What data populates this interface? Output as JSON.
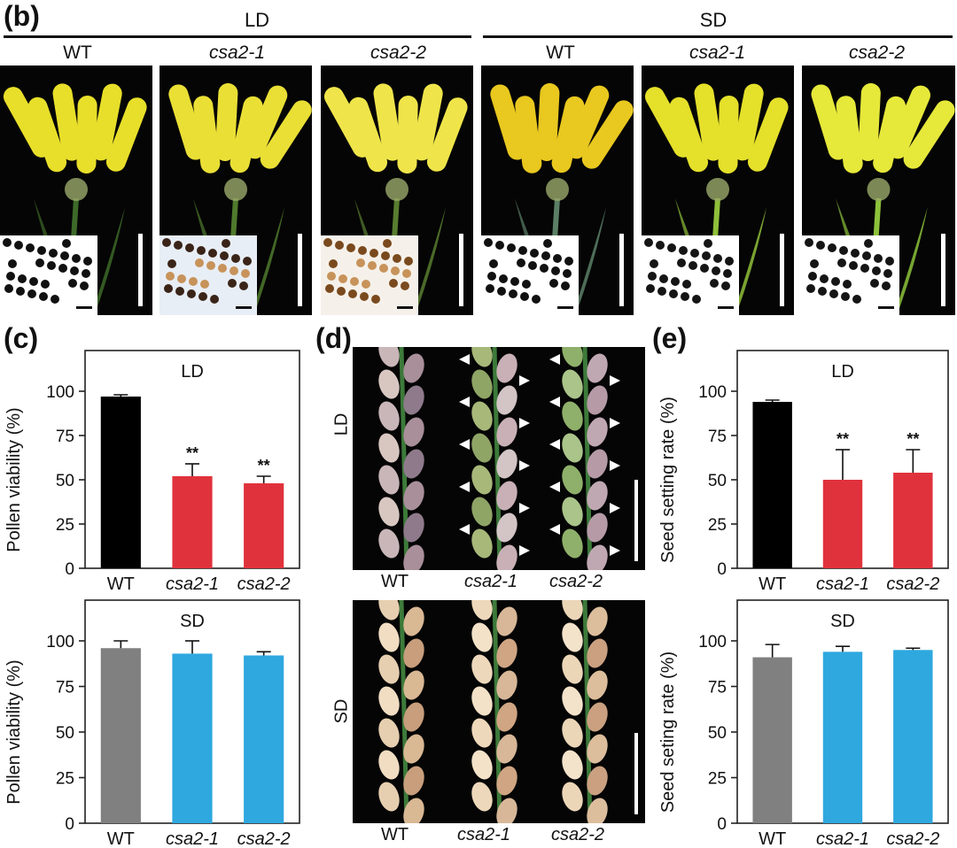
{
  "panel_b": {
    "label": "(b)",
    "groups": [
      {
        "label": "LD",
        "columns": [
          "WT",
          "csa2-1",
          "csa2-2"
        ]
      },
      {
        "label": "SD",
        "columns": [
          "WT",
          "csa2-1",
          "csa2-2"
        ]
      }
    ]
  },
  "panel_c": {
    "label": "(c)"
  },
  "panel_d": {
    "label": "(d)",
    "rows": [
      {
        "label": "LD",
        "columns": [
          "WT",
          "csa2-1",
          "csa2-2"
        ]
      },
      {
        "label": "SD",
        "columns": [
          "WT",
          "csa2-1",
          "csa2-2"
        ]
      }
    ]
  },
  "panel_e": {
    "label": "(e)"
  },
  "colors": {
    "wt_ld": "#000000",
    "wt_sd": "#808080",
    "mutant_ld": "#e0323c",
    "mutant_sd": "#2ea8df"
  },
  "chart_data": [
    {
      "type": "bar",
      "panel": "c",
      "title": "LD",
      "ylabel": "Pollen viability (%)",
      "categories": [
        "WT",
        "csa2-1",
        "csa2-2"
      ],
      "values": [
        97,
        52,
        48
      ],
      "errors": [
        1,
        7,
        4
      ],
      "annotations": [
        "",
        "**",
        "**"
      ],
      "ylim": [
        0,
        100
      ],
      "yticks": [
        0,
        25,
        50,
        75,
        100
      ],
      "bar_colors": [
        "#000000",
        "#e0323c",
        "#e0323c"
      ]
    },
    {
      "type": "bar",
      "panel": "c",
      "title": "SD",
      "ylabel": "Pollen viability (%)",
      "categories": [
        "WT",
        "csa2-1",
        "csa2-2"
      ],
      "values": [
        96,
        93,
        92
      ],
      "errors": [
        4,
        7,
        2
      ],
      "annotations": [
        "",
        "",
        ""
      ],
      "ylim": [
        0,
        100
      ],
      "yticks": [
        0,
        25,
        50,
        75,
        100
      ],
      "bar_colors": [
        "#808080",
        "#2ea8df",
        "#2ea8df"
      ]
    },
    {
      "type": "bar",
      "panel": "e",
      "title": "LD",
      "ylabel": "Seed setting rate (%)",
      "categories": [
        "WT",
        "csa2-1",
        "csa2-2"
      ],
      "values": [
        94,
        50,
        54
      ],
      "errors": [
        1,
        17,
        13
      ],
      "annotations": [
        "",
        "**",
        "**"
      ],
      "ylim": [
        0,
        100
      ],
      "yticks": [
        0,
        25,
        50,
        75,
        100
      ],
      "bar_colors": [
        "#000000",
        "#e0323c",
        "#e0323c"
      ]
    },
    {
      "type": "bar",
      "panel": "e",
      "title": "SD",
      "ylabel": "Seed seting rate (%)",
      "categories": [
        "WT",
        "csa2-1",
        "csa2-2"
      ],
      "values": [
        91,
        94,
        95
      ],
      "errors": [
        7,
        3,
        1
      ],
      "annotations": [
        "",
        "",
        ""
      ],
      "ylim": [
        0,
        100
      ],
      "yticks": [
        0,
        25,
        50,
        75,
        100
      ],
      "bar_colors": [
        "#808080",
        "#2ea8df",
        "#2ea8df"
      ]
    }
  ]
}
